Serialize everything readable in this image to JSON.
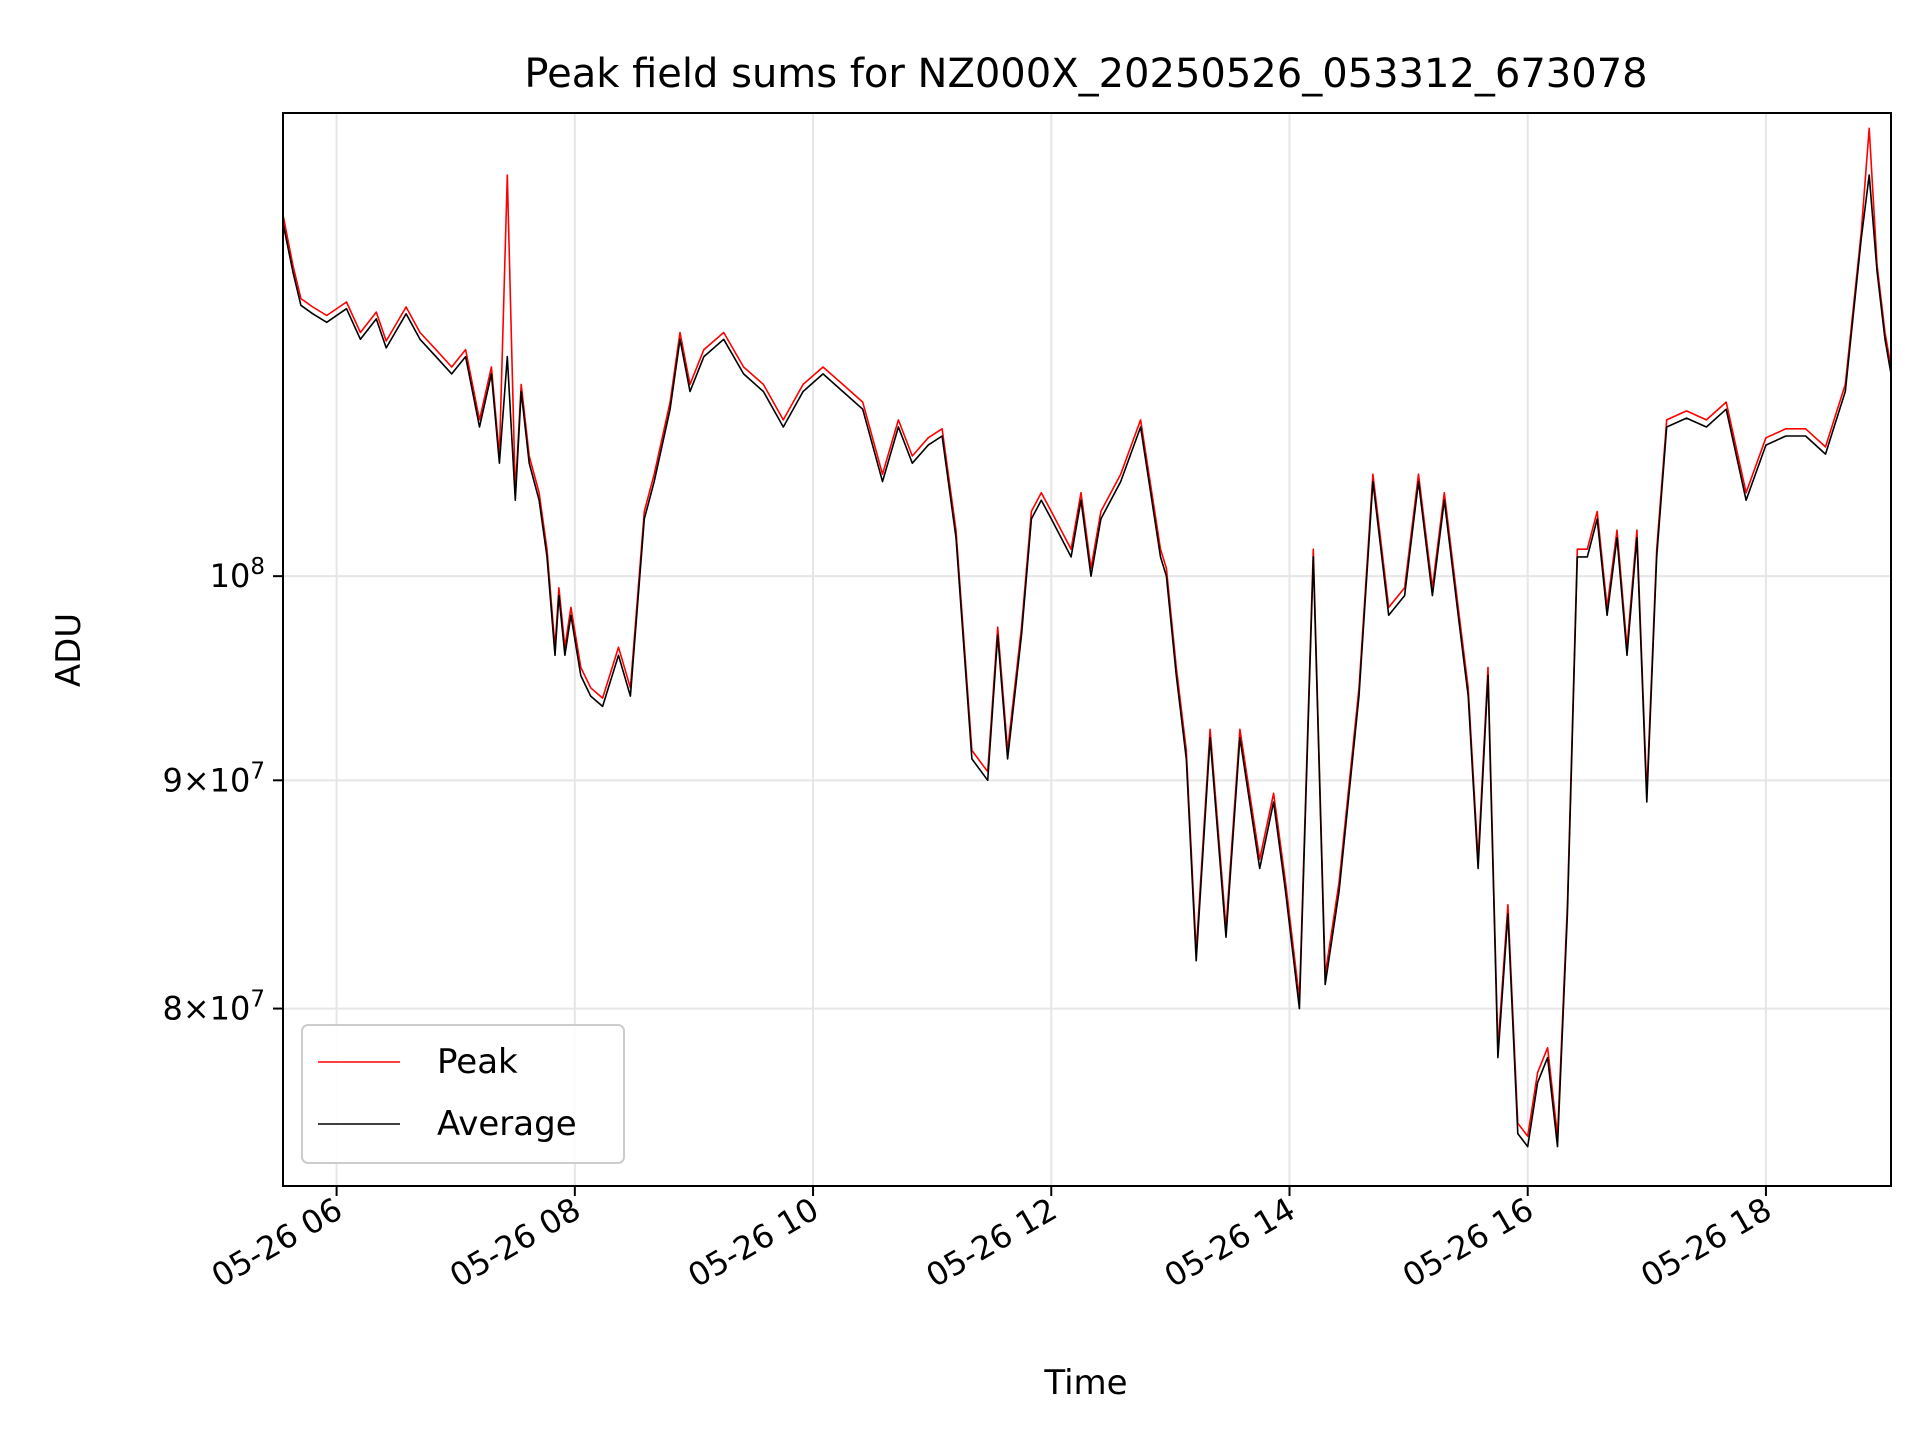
{
  "chart_data": {
    "type": "line",
    "title": "Peak field sums for NZ000X_20250526_053312_673078",
    "xlabel": "Time",
    "ylabel": "ADU",
    "yscale": "log",
    "xlim": [
      "2025-05-26T05:33",
      "2025-05-26T19:03"
    ],
    "ylim": [
      73000000,
      127000000
    ],
    "grid": true,
    "legend_position": "lower-left",
    "x_ticks": [
      {
        "t": "2025-05-26T06:00",
        "label": "05-26 06"
      },
      {
        "t": "2025-05-26T08:00",
        "label": "05-26 08"
      },
      {
        "t": "2025-05-26T10:00",
        "label": "05-26 10"
      },
      {
        "t": "2025-05-26T12:00",
        "label": "05-26 12"
      },
      {
        "t": "2025-05-26T14:00",
        "label": "05-26 14"
      },
      {
        "t": "2025-05-26T16:00",
        "label": "05-26 16"
      },
      {
        "t": "2025-05-26T18:00",
        "label": "05-26 18"
      }
    ],
    "y_ticks": [
      {
        "value": 80000000,
        "mant": "8",
        "exp": "7"
      },
      {
        "value": 90000000,
        "mant": "9",
        "exp": "7"
      },
      {
        "value": 100000000,
        "mant": "",
        "exp": "8"
      }
    ],
    "series": [
      {
        "name": "Peak",
        "color": "#ff0000",
        "role": "peak"
      },
      {
        "name": "Average",
        "color": "#000000",
        "role": "average"
      }
    ],
    "x": [
      "2025-05-26T05:33",
      "2025-05-26T05:38",
      "2025-05-26T05:42",
      "2025-05-26T05:48",
      "2025-05-26T05:55",
      "2025-05-26T06:05",
      "2025-05-26T06:12",
      "2025-05-26T06:20",
      "2025-05-26T06:25",
      "2025-05-26T06:35",
      "2025-05-26T06:42",
      "2025-05-26T06:50",
      "2025-05-26T06:58",
      "2025-05-26T07:05",
      "2025-05-26T07:12",
      "2025-05-26T07:18",
      "2025-05-26T07:22",
      "2025-05-26T07:26",
      "2025-05-26T07:30",
      "2025-05-26T07:33",
      "2025-05-26T07:37",
      "2025-05-26T07:42",
      "2025-05-26T07:46",
      "2025-05-26T07:50",
      "2025-05-26T07:52",
      "2025-05-26T07:55",
      "2025-05-26T07:58",
      "2025-05-26T08:03",
      "2025-05-26T08:08",
      "2025-05-26T08:14",
      "2025-05-26T08:22",
      "2025-05-26T08:28",
      "2025-05-26T08:35",
      "2025-05-26T08:40",
      "2025-05-26T08:48",
      "2025-05-26T08:53",
      "2025-05-26T08:58",
      "2025-05-26T09:05",
      "2025-05-26T09:15",
      "2025-05-26T09:25",
      "2025-05-26T09:35",
      "2025-05-26T09:45",
      "2025-05-26T09:55",
      "2025-05-26T10:05",
      "2025-05-26T10:15",
      "2025-05-26T10:25",
      "2025-05-26T10:35",
      "2025-05-26T10:43",
      "2025-05-26T10:50",
      "2025-05-26T10:58",
      "2025-05-26T11:05",
      "2025-05-26T11:12",
      "2025-05-26T11:20",
      "2025-05-26T11:28",
      "2025-05-26T11:33",
      "2025-05-26T11:38",
      "2025-05-26T11:45",
      "2025-05-26T11:50",
      "2025-05-26T11:55",
      "2025-05-26T12:00",
      "2025-05-26T12:10",
      "2025-05-26T12:15",
      "2025-05-26T12:20",
      "2025-05-26T12:25",
      "2025-05-26T12:35",
      "2025-05-26T12:45",
      "2025-05-26T12:55",
      "2025-05-26T12:58",
      "2025-05-26T13:03",
      "2025-05-26T13:08",
      "2025-05-26T13:13",
      "2025-05-26T13:20",
      "2025-05-26T13:28",
      "2025-05-26T13:35",
      "2025-05-26T13:45",
      "2025-05-26T13:52",
      "2025-05-26T13:58",
      "2025-05-26T14:05",
      "2025-05-26T14:12",
      "2025-05-26T14:18",
      "2025-05-26T14:25",
      "2025-05-26T14:35",
      "2025-05-26T14:42",
      "2025-05-26T14:50",
      "2025-05-26T14:58",
      "2025-05-26T15:05",
      "2025-05-26T15:12",
      "2025-05-26T15:18",
      "2025-05-26T15:25",
      "2025-05-26T15:30",
      "2025-05-26T15:35",
      "2025-05-26T15:40",
      "2025-05-26T15:45",
      "2025-05-26T15:50",
      "2025-05-26T15:55",
      "2025-05-26T16:00",
      "2025-05-26T16:05",
      "2025-05-26T16:10",
      "2025-05-26T16:15",
      "2025-05-26T16:20",
      "2025-05-26T16:25",
      "2025-05-26T16:30",
      "2025-05-26T16:35",
      "2025-05-26T16:40",
      "2025-05-26T16:45",
      "2025-05-26T16:50",
      "2025-05-26T16:55",
      "2025-05-26T17:00",
      "2025-05-26T17:05",
      "2025-05-26T17:10",
      "2025-05-26T17:20",
      "2025-05-26T17:30",
      "2025-05-26T17:40",
      "2025-05-26T17:50",
      "2025-05-26T18:00",
      "2025-05-26T18:10",
      "2025-05-26T18:20",
      "2025-05-26T18:30",
      "2025-05-26T18:40",
      "2025-05-26T18:48",
      "2025-05-26T18:52",
      "2025-05-26T18:56",
      "2025-05-26T19:00",
      "2025-05-26T19:03"
    ],
    "average": [
      120000000,
      117000000,
      115000000,
      114500000,
      114000000,
      114800000,
      113000000,
      114200000,
      112500000,
      114500000,
      113000000,
      112000000,
      111000000,
      112000000,
      108000000,
      111000000,
      106000000,
      112000000,
      104000000,
      110000000,
      106000000,
      104000000,
      101000000,
      96000000,
      99000000,
      96000000,
      98000000,
      95000000,
      94000000,
      93500000,
      96000000,
      94000000,
      103000000,
      105000000,
      109000000,
      113000000,
      110000000,
      112000000,
      113000000,
      111000000,
      110000000,
      108000000,
      110000000,
      111000000,
      110000000,
      109000000,
      105000000,
      108000000,
      106000000,
      107000000,
      107500000,
      102000000,
      91000000,
      90000000,
      97000000,
      91000000,
      97000000,
      103000000,
      104000000,
      103000000,
      101000000,
      104000000,
      100000000,
      103000000,
      105000000,
      108000000,
      101000000,
      100000000,
      95000000,
      91000000,
      82000000,
      92000000,
      83000000,
      92000000,
      86000000,
      89000000,
      85000000,
      80000000,
      101000000,
      81000000,
      85000000,
      94000000,
      105000000,
      98000000,
      99000000,
      105000000,
      99000000,
      104000000,
      98000000,
      94000000,
      86000000,
      95000000,
      78000000,
      84000000,
      75000000,
      74500000,
      77000000,
      78000000,
      74500000,
      84000000,
      101000000,
      101000000,
      103000000,
      98000000,
      102000000,
      96000000,
      102000000,
      89000000,
      101000000,
      108000000,
      108500000,
      108000000,
      109000000,
      104000000,
      107000000,
      107500000,
      107500000,
      106500000,
      110000000,
      119000000,
      123000000,
      117000000,
      113000000,
      111000000
    ],
    "peak": [
      120500000,
      117400000,
      115400000,
      114900000,
      114400000,
      115200000,
      113400000,
      114600000,
      112900000,
      114900000,
      113400000,
      112400000,
      111400000,
      112400000,
      108400000,
      111400000,
      106400000,
      123000000,
      104400000,
      110400000,
      106400000,
      104400000,
      101400000,
      96400000,
      99400000,
      96400000,
      98400000,
      95400000,
      94400000,
      93900000,
      96400000,
      94400000,
      103400000,
      105400000,
      109400000,
      113400000,
      110400000,
      112400000,
      113400000,
      111400000,
      110400000,
      108400000,
      110400000,
      111400000,
      110400000,
      109400000,
      105400000,
      108400000,
      106400000,
      107400000,
      107900000,
      102400000,
      91400000,
      90400000,
      97400000,
      91400000,
      97400000,
      103400000,
      104400000,
      103400000,
      101400000,
      104400000,
      100400000,
      103400000,
      105400000,
      108400000,
      101400000,
      100400000,
      95400000,
      91400000,
      82400000,
      92400000,
      83400000,
      92400000,
      86400000,
      89400000,
      85400000,
      80400000,
      101400000,
      81400000,
      85400000,
      94400000,
      105400000,
      98400000,
      99400000,
      105400000,
      99400000,
      104400000,
      98400000,
      94400000,
      86400000,
      95400000,
      78400000,
      84400000,
      75400000,
      74900000,
      77400000,
      78400000,
      74900000,
      84400000,
      101400000,
      101400000,
      103400000,
      98400000,
      102400000,
      96400000,
      102400000,
      89400000,
      101400000,
      108400000,
      108900000,
      108400000,
      109400000,
      104400000,
      107400000,
      107900000,
      107900000,
      106900000,
      110400000,
      119400000,
      126000000,
      117400000,
      113400000,
      111400000
    ]
  }
}
